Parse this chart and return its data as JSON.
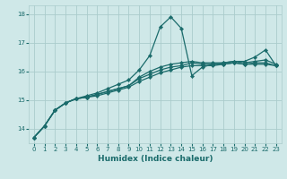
{
  "xlabel": "Humidex (Indice chaleur)",
  "bg_color": "#cfe8e8",
  "grid_color": "#aacccc",
  "line_color": "#1a6b6b",
  "xlim": [
    -0.5,
    23.5
  ],
  "ylim": [
    13.5,
    18.3
  ],
  "x_ticks": [
    0,
    1,
    2,
    3,
    4,
    5,
    6,
    7,
    8,
    9,
    10,
    11,
    12,
    13,
    14,
    15,
    16,
    17,
    18,
    19,
    20,
    21,
    22,
    23
  ],
  "y_ticks": [
    14,
    15,
    16,
    17,
    18
  ],
  "series": [
    [
      13.7,
      14.1,
      14.65,
      14.9,
      15.05,
      15.1,
      15.15,
      15.25,
      15.35,
      15.45,
      15.65,
      15.8,
      15.95,
      16.05,
      16.15,
      16.2,
      16.2,
      16.2,
      16.25,
      16.3,
      16.25,
      16.25,
      16.25,
      16.2
    ],
    [
      13.7,
      14.1,
      14.65,
      14.9,
      15.05,
      15.1,
      15.2,
      15.3,
      15.4,
      15.5,
      15.75,
      15.9,
      16.05,
      16.15,
      16.2,
      16.3,
      16.25,
      16.25,
      16.25,
      16.3,
      16.25,
      16.3,
      16.3,
      16.2
    ],
    [
      13.7,
      14.1,
      14.65,
      14.9,
      15.05,
      15.1,
      15.2,
      15.3,
      15.4,
      15.5,
      15.8,
      16.0,
      16.15,
      16.25,
      16.3,
      16.35,
      16.3,
      16.3,
      16.3,
      16.35,
      16.3,
      16.35,
      16.4,
      16.25
    ],
    [
      13.7,
      14.1,
      14.65,
      14.9,
      15.05,
      15.15,
      15.25,
      15.4,
      15.55,
      15.7,
      16.05,
      16.55,
      17.55,
      17.9,
      17.5,
      15.85,
      16.15,
      16.25,
      16.3,
      16.35,
      16.35,
      16.5,
      16.75,
      16.2
    ]
  ],
  "marker": "D",
  "marker_size": 2.2,
  "linewidth": 0.9,
  "xlabel_fontsize": 6.5,
  "tick_fontsize": 5.0
}
